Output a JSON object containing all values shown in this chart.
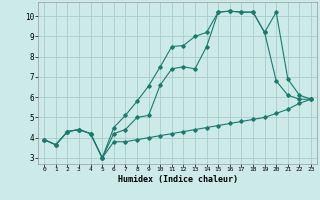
{
  "xlabel": "Humidex (Indice chaleur)",
  "bg_color": "#cceae7",
  "grid_color": "#aaccca",
  "line_color": "#1a7a6e",
  "xlim": [
    -0.5,
    23.5
  ],
  "ylim": [
    2.7,
    10.7
  ],
  "xticks": [
    0,
    1,
    2,
    3,
    4,
    5,
    6,
    7,
    8,
    9,
    10,
    11,
    12,
    13,
    14,
    15,
    16,
    17,
    18,
    19,
    20,
    21,
    22,
    23
  ],
  "yticks": [
    3,
    4,
    5,
    6,
    7,
    8,
    9,
    10
  ],
  "line1_x": [
    0,
    1,
    2,
    3,
    4,
    5,
    6,
    7,
    8,
    9,
    10,
    11,
    12,
    13,
    14,
    15,
    16,
    17,
    18,
    19,
    20,
    21,
    22,
    23
  ],
  "line1_y": [
    3.9,
    3.65,
    4.3,
    4.4,
    4.2,
    3.0,
    3.8,
    3.8,
    3.9,
    4.0,
    4.1,
    4.2,
    4.3,
    4.4,
    4.5,
    4.6,
    4.7,
    4.8,
    4.9,
    5.0,
    5.2,
    5.4,
    5.7,
    5.9
  ],
  "line2_x": [
    0,
    1,
    2,
    3,
    4,
    5,
    6,
    7,
    8,
    9,
    10,
    11,
    12,
    13,
    14,
    15,
    16,
    17,
    18,
    19,
    20,
    21,
    22,
    23
  ],
  "line2_y": [
    3.9,
    3.65,
    4.3,
    4.4,
    4.2,
    3.0,
    4.5,
    5.1,
    5.8,
    6.55,
    7.5,
    8.5,
    8.55,
    9.0,
    9.2,
    10.2,
    10.25,
    10.2,
    10.2,
    9.2,
    10.2,
    6.9,
    6.1,
    5.9
  ],
  "line3_x": [
    0,
    1,
    2,
    3,
    4,
    5,
    6,
    7,
    8,
    9,
    10,
    11,
    12,
    13,
    14,
    15,
    16,
    17,
    18,
    19,
    20,
    21,
    22,
    23
  ],
  "line3_y": [
    3.9,
    3.65,
    4.3,
    4.4,
    4.2,
    3.0,
    4.2,
    4.4,
    5.0,
    5.1,
    6.6,
    7.4,
    7.5,
    7.4,
    8.5,
    10.2,
    10.25,
    10.2,
    10.2,
    9.2,
    6.8,
    6.1,
    5.9,
    5.9
  ]
}
